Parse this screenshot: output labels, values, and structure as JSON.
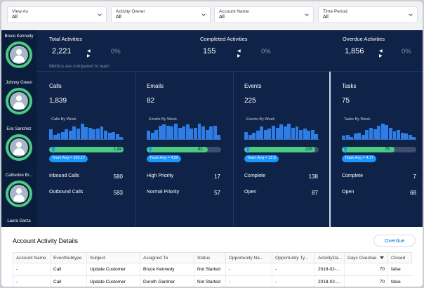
{
  "filters": [
    {
      "label": "View As",
      "value": "All"
    },
    {
      "label": "Activity Owner",
      "value": "All"
    },
    {
      "label": "Account Name",
      "value": "All"
    },
    {
      "label": "Time Period",
      "value": "All"
    }
  ],
  "reps": [
    "Bruce Kennedy",
    "Johnny Green",
    "Eric Sanchez",
    "Catherine Br...",
    "Laura Garza"
  ],
  "summary": {
    "total": {
      "title": "Total Activities",
      "value": "2,221",
      "arrows": "◀ ▶",
      "pct": "0%"
    },
    "completed": {
      "title": "Completed Activities",
      "value": "155",
      "arrows": "◀ ▶",
      "pct": "0%"
    },
    "overdue": {
      "title": "Overdue Activities",
      "value": "1,856",
      "arrows": "◀ ▶",
      "pct": "0%"
    },
    "note": "Metrics are compared to team"
  },
  "cards": [
    {
      "title": "Calls",
      "value": "1,839",
      "weekly_label": "Calls By Week",
      "bar_value": "1.8k",
      "bar_fraction": 1.0,
      "team_avg": "Team Avg = 102.17",
      "team_avg_fraction": 0.06,
      "weekly": [
        14,
        6,
        8,
        10,
        14,
        12,
        18,
        15,
        22,
        17,
        16,
        14,
        15,
        18,
        12,
        9,
        10,
        7,
        3
      ],
      "metrics": [
        {
          "label": "Inbound Calls",
          "value": "580"
        },
        {
          "label": "Outbound Calls",
          "value": "583"
        }
      ]
    },
    {
      "title": "Emails",
      "value": "82",
      "weekly_label": "Emails By Week",
      "bar_value": "82",
      "bar_fraction": 0.82,
      "team_avg": "Team Avg = 4.56",
      "team_avg_fraction": 0.05,
      "weekly": [
        8,
        6,
        9,
        13,
        14,
        13,
        12,
        15,
        11,
        12,
        14,
        10,
        11,
        15,
        12,
        9,
        12,
        13,
        4
      ],
      "metrics": [
        {
          "label": "High Priority",
          "value": "17"
        },
        {
          "label": "Normal Priority",
          "value": "57"
        }
      ]
    },
    {
      "title": "Events",
      "value": "225",
      "weekly_label": "Events By Week",
      "bar_value": "225",
      "bar_fraction": 0.95,
      "team_avg": "Team Avg = 12.5",
      "team_avg_fraction": 0.05,
      "weekly": [
        7,
        4,
        6,
        8,
        12,
        9,
        10,
        13,
        11,
        14,
        12,
        15,
        11,
        12,
        9,
        10,
        8,
        9,
        5
      ],
      "metrics": [
        {
          "label": "Complete",
          "value": "138"
        },
        {
          "label": "Open",
          "value": "87"
        }
      ]
    },
    {
      "title": "Tasks",
      "value": "75",
      "weekly_label": "Tasks By Week",
      "bar_value": "75",
      "bar_fraction": 0.71,
      "team_avg": "Team Avg = 4.17",
      "team_avg_fraction": 0.05,
      "weekly": [
        3,
        4,
        2,
        5,
        6,
        4,
        8,
        10,
        9,
        12,
        14,
        13,
        10,
        7,
        8,
        6,
        5,
        4,
        2
      ],
      "metrics": [
        {
          "label": "Complete",
          "value": "7"
        },
        {
          "label": "Open",
          "value": "68"
        }
      ]
    }
  ],
  "details": {
    "title": "Account Activity Details",
    "filter_button": "Overdue",
    "columns": [
      "Account Name",
      "EventSubtype",
      "Subject",
      "Assigned To",
      "Status",
      "Opportunity Na...",
      "Opportunity Ty...",
      "ActivityDa...",
      "Days Overdue",
      "Closed"
    ],
    "rows": [
      [
        "-",
        "Call",
        "Update Customer",
        "Bruce Kennedy",
        "Not Started",
        "-",
        "-",
        "2018-02-...",
        "70",
        "false"
      ],
      [
        "-",
        "Call",
        "Update Customer",
        "Doroth Gardner",
        "Not Started",
        "-",
        "-",
        "2018-02-...",
        "70",
        "false"
      ]
    ]
  },
  "colors": {
    "navy": "#0e2347",
    "green": "#4bca81",
    "blue": "#2e7ce6",
    "accent": "#1b96ff"
  }
}
